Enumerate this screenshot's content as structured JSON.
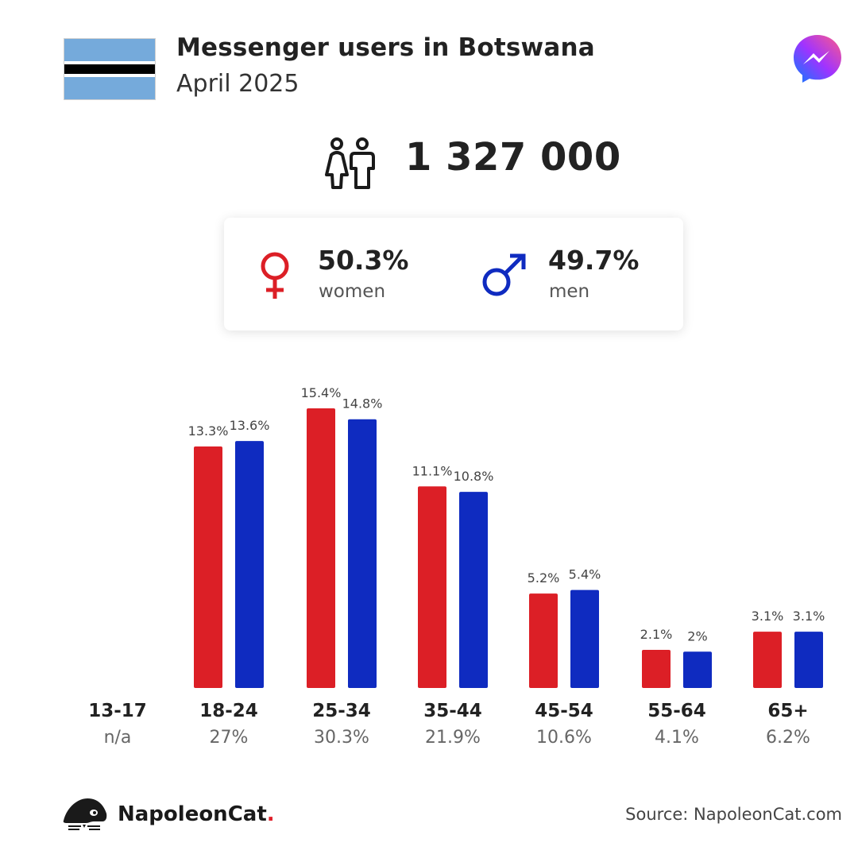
{
  "header": {
    "title": "Messenger users in Botswana",
    "subtitle": "April 2025",
    "flag_colors": [
      "#75AADB",
      "#ffffff",
      "#000000"
    ],
    "app_icon": "messenger-icon"
  },
  "total": {
    "value": "1 327 000",
    "icon": "people-icon"
  },
  "gender": {
    "women": {
      "pct": "50.3%",
      "label": "women",
      "color": "#DC1F26"
    },
    "men": {
      "pct": "49.7%",
      "label": "men",
      "color": "#0F2BC0"
    }
  },
  "chart_data": {
    "type": "bar",
    "categories": [
      "13-17",
      "18-24",
      "25-34",
      "35-44",
      "45-54",
      "55-64",
      "65+"
    ],
    "category_totals": [
      "n/a",
      "27%",
      "30.3%",
      "21.9%",
      "10.6%",
      "4.1%",
      "6.2%"
    ],
    "series": [
      {
        "values": [
          null,
          13.3,
          15.4,
          11.1,
          5.2,
          2.1,
          3.1
        ],
        "labels": [
          "",
          "13.3%",
          "15.4%",
          "11.1%",
          "5.2%",
          "2.1%",
          "3.1%"
        ],
        "color": "#DC1F26"
      },
      {
        "values": [
          null,
          13.6,
          14.8,
          10.8,
          5.4,
          2.0,
          3.1
        ],
        "labels": [
          "",
          "13.6%",
          "14.8%",
          "10.8%",
          "5.4%",
          "2%",
          "3.1%"
        ],
        "color": "#0F2BC0"
      }
    ],
    "ylim": [
      0,
      15.4
    ],
    "grid": false
  },
  "footer": {
    "brand": "NapoleonCat",
    "brand_dot": ".",
    "source": "Source: NapoleonCat.com"
  }
}
